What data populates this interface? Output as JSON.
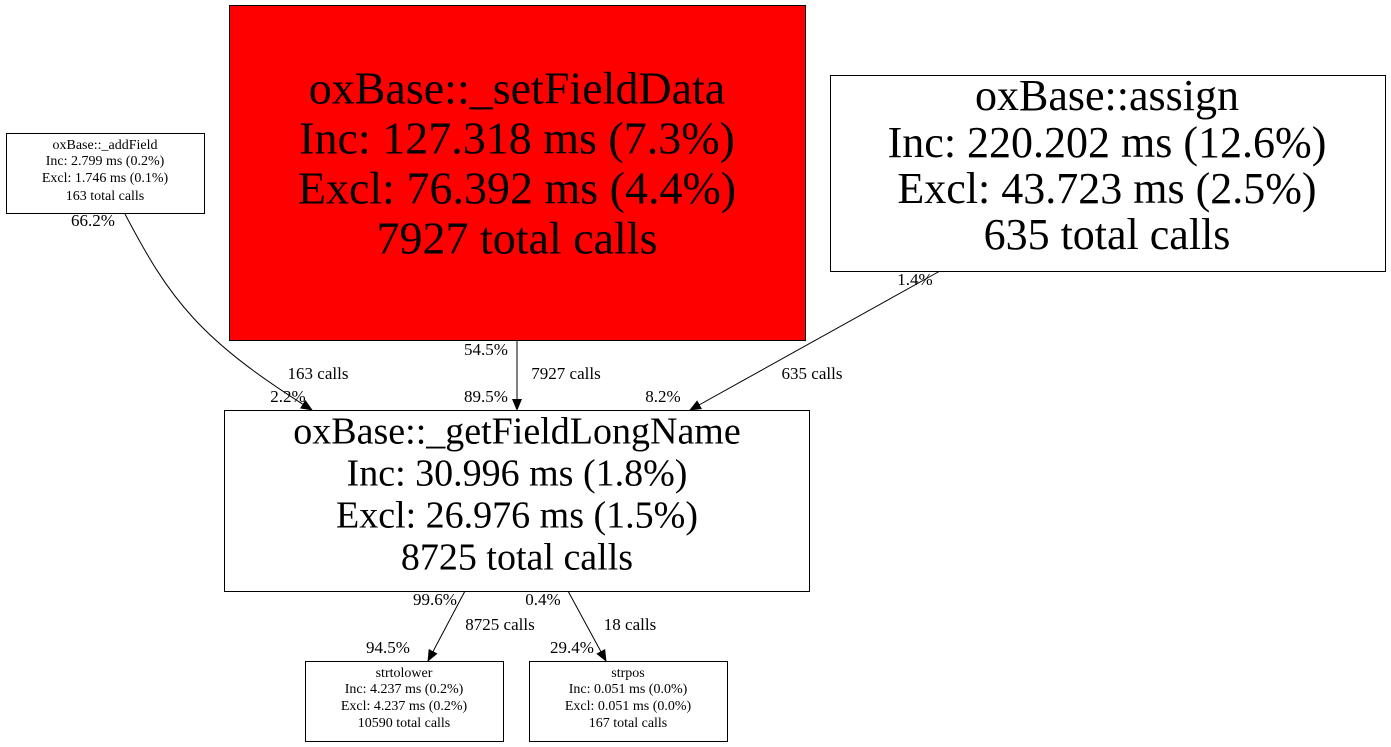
{
  "nodes": [
    {
      "name": "oxBase::_addField",
      "inc": "Inc: 2.799 ms (0.2%)",
      "excl": "Excl: 1.746 ms (0.1%)",
      "calls": "163 total calls"
    },
    {
      "name": "oxBase::_setFieldData",
      "inc": "Inc: 127.318 ms (7.3%)",
      "excl": "Excl: 76.392 ms (4.4%)",
      "calls": "7927 total calls"
    },
    {
      "name": "oxBase::assign",
      "inc": "Inc: 220.202 ms (12.6%)",
      "excl": "Excl: 43.723 ms (2.5%)",
      "calls": "635 total calls"
    },
    {
      "name": "oxBase::_getFieldLongName",
      "inc": "Inc: 30.996 ms (1.8%)",
      "excl": "Excl: 26.976 ms (1.5%)",
      "calls": "8725 total calls"
    },
    {
      "name": "strtolower",
      "inc": "Inc: 4.237 ms (0.2%)",
      "excl": "Excl: 4.237 ms (0.2%)",
      "calls": "10590 total calls"
    },
    {
      "name": "strpos",
      "inc": "Inc: 0.051 ms (0.0%)",
      "excl": "Excl: 0.051 ms (0.0%)",
      "calls": "167 total calls"
    }
  ],
  "edges": [
    {
      "tail_label": "66.2%",
      "label": "163 calls",
      "head_label": "2.2%"
    },
    {
      "tail_label": "54.5%",
      "label": "7927 calls",
      "head_label": "89.5%"
    },
    {
      "tail_label": "1.4%",
      "label": "635 calls",
      "head_label": "8.2%"
    },
    {
      "tail_label": "99.6%",
      "label": "8725 calls",
      "head_label": "94.5%"
    },
    {
      "tail_label": "0.4%",
      "label": "18 calls",
      "head_label": "29.4%"
    }
  ]
}
